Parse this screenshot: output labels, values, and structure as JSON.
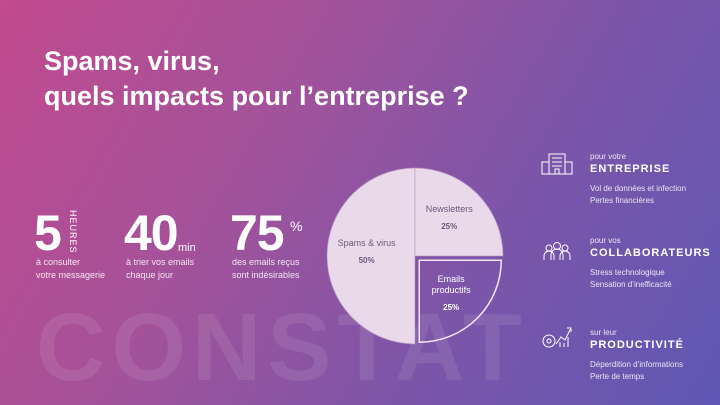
{
  "background_word": "CONSTAT",
  "title": {
    "line1": "Spams, virus,",
    "line2": "quels impacts pour l’entreprise ?"
  },
  "stats": [
    {
      "value": "5",
      "unit": "HEURES",
      "desc1": "à consulter",
      "desc2": "votre messagerie"
    },
    {
      "value": "40",
      "unit": "min",
      "desc1": "à trier vos emails",
      "desc2": "chaque jour"
    },
    {
      "value": "75",
      "unit": "%",
      "desc1": "des emails reçus",
      "desc2": "sont indésirables"
    }
  ],
  "chart_data": {
    "type": "pie",
    "slices": [
      {
        "label": "Spams & virus",
        "value": 50,
        "value_label": "50%"
      },
      {
        "label": "Newsletters",
        "value": 25,
        "value_label": "25%"
      },
      {
        "label": "Emails productifs",
        "value": 25,
        "value_label": "25%"
      }
    ]
  },
  "impacts": [
    {
      "icon": "building-icon",
      "for": "pour votre",
      "category": "ENTREPRISE",
      "line1": "Vol de données et infection",
      "line2": "Pertes financières"
    },
    {
      "icon": "team-icon",
      "for": "pour vos",
      "category": "COLLABORATEURS",
      "line1": "Stress technologique",
      "line2": "Sensation d’inefficacité"
    },
    {
      "icon": "productivity-chart-icon",
      "for": "sur leur",
      "category": "PRODUCTIVITÉ",
      "line1": "Déperdition d’informations",
      "line2": "Perte de temps"
    }
  ],
  "colors": {
    "pie_fill": "#ead9ea",
    "pie_text": "#6b5a7a"
  }
}
